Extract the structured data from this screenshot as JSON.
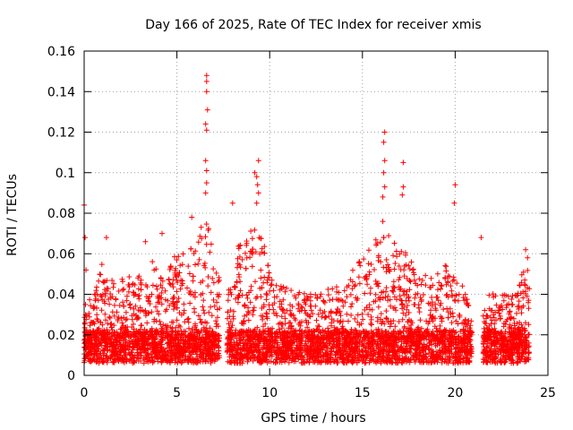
{
  "chart_data": {
    "type": "scatter",
    "title": "Day 166 of 2025, Rate Of TEC Index for receiver xmis",
    "xlabel": "GPS time / hours",
    "ylabel": "ROTI / TECUs",
    "xlim": [
      0,
      25
    ],
    "ylim": [
      0,
      0.16
    ],
    "xticks": [
      0,
      5,
      10,
      15,
      20,
      25
    ],
    "yticks": [
      0,
      0.02,
      0.04,
      0.06,
      0.08,
      0.1,
      0.12,
      0.14,
      0.16
    ],
    "xtick_labels": [
      "0",
      "5",
      "10",
      "15",
      "20",
      "25"
    ],
    "ytick_labels": [
      "0",
      "0.02",
      "0.04",
      "0.06",
      "0.08",
      "0.1",
      "0.12",
      "0.14",
      "0.16"
    ],
    "grid": true,
    "marker": "+",
    "marker_color": "#ff0000",
    "data_gaps_hours": [
      [
        7.3,
        7.7
      ],
      [
        20.9,
        21.5
      ]
    ],
    "series": [
      {
        "name": "ROTI",
        "envelope": {
          "x": [
            0,
            0.5,
            1,
            2,
            3,
            3.4,
            4,
            5,
            6,
            6.6,
            7,
            7.3,
            8,
            8.4,
            9,
            9.4,
            10,
            11,
            12,
            13,
            14,
            15,
            15.5,
            16,
            16.2,
            17,
            17.2,
            18,
            19,
            19.5,
            20,
            20.4,
            20.9,
            21.5,
            22,
            23,
            23.5,
            24
          ],
          "typical_max": [
            0.035,
            0.04,
            0.058,
            0.048,
            0.05,
            0.062,
            0.05,
            0.06,
            0.068,
            0.078,
            0.06,
            0.05,
            0.045,
            0.07,
            0.072,
            0.08,
            0.05,
            0.045,
            0.04,
            0.042,
            0.045,
            0.06,
            0.065,
            0.07,
            0.075,
            0.06,
            0.065,
            0.05,
            0.05,
            0.06,
            0.05,
            0.045,
            0.03,
            0.03,
            0.045,
            0.04,
            0.05,
            0.055
          ]
        },
        "highlights": [
          {
            "x": 0.0,
            "y": 0.084
          },
          {
            "x": 0.05,
            "y": 0.068
          },
          {
            "x": 0.1,
            "y": 0.052
          },
          {
            "x": 1.2,
            "y": 0.068
          },
          {
            "x": 3.3,
            "y": 0.066
          },
          {
            "x": 4.2,
            "y": 0.07
          },
          {
            "x": 5.8,
            "y": 0.078
          },
          {
            "x": 6.6,
            "y": 0.148
          },
          {
            "x": 6.6,
            "y": 0.145
          },
          {
            "x": 6.6,
            "y": 0.14
          },
          {
            "x": 6.65,
            "y": 0.131
          },
          {
            "x": 6.55,
            "y": 0.124
          },
          {
            "x": 6.6,
            "y": 0.121
          },
          {
            "x": 6.55,
            "y": 0.106
          },
          {
            "x": 6.6,
            "y": 0.101
          },
          {
            "x": 6.6,
            "y": 0.095
          },
          {
            "x": 6.55,
            "y": 0.09
          },
          {
            "x": 8.0,
            "y": 0.085
          },
          {
            "x": 9.2,
            "y": 0.1
          },
          {
            "x": 9.4,
            "y": 0.106
          },
          {
            "x": 9.3,
            "y": 0.098
          },
          {
            "x": 9.35,
            "y": 0.094
          },
          {
            "x": 9.4,
            "y": 0.09
          },
          {
            "x": 9.3,
            "y": 0.085
          },
          {
            "x": 16.2,
            "y": 0.12
          },
          {
            "x": 16.15,
            "y": 0.115
          },
          {
            "x": 16.2,
            "y": 0.106
          },
          {
            "x": 16.15,
            "y": 0.1
          },
          {
            "x": 16.2,
            "y": 0.093
          },
          {
            "x": 16.1,
            "y": 0.088
          },
          {
            "x": 16.1,
            "y": 0.076
          },
          {
            "x": 17.2,
            "y": 0.105
          },
          {
            "x": 17.2,
            "y": 0.093
          },
          {
            "x": 17.15,
            "y": 0.089
          },
          {
            "x": 20.0,
            "y": 0.094
          },
          {
            "x": 19.95,
            "y": 0.085
          },
          {
            "x": 21.4,
            "y": 0.068
          },
          {
            "x": 23.8,
            "y": 0.062
          },
          {
            "x": 23.9,
            "y": 0.058
          }
        ]
      }
    ]
  }
}
